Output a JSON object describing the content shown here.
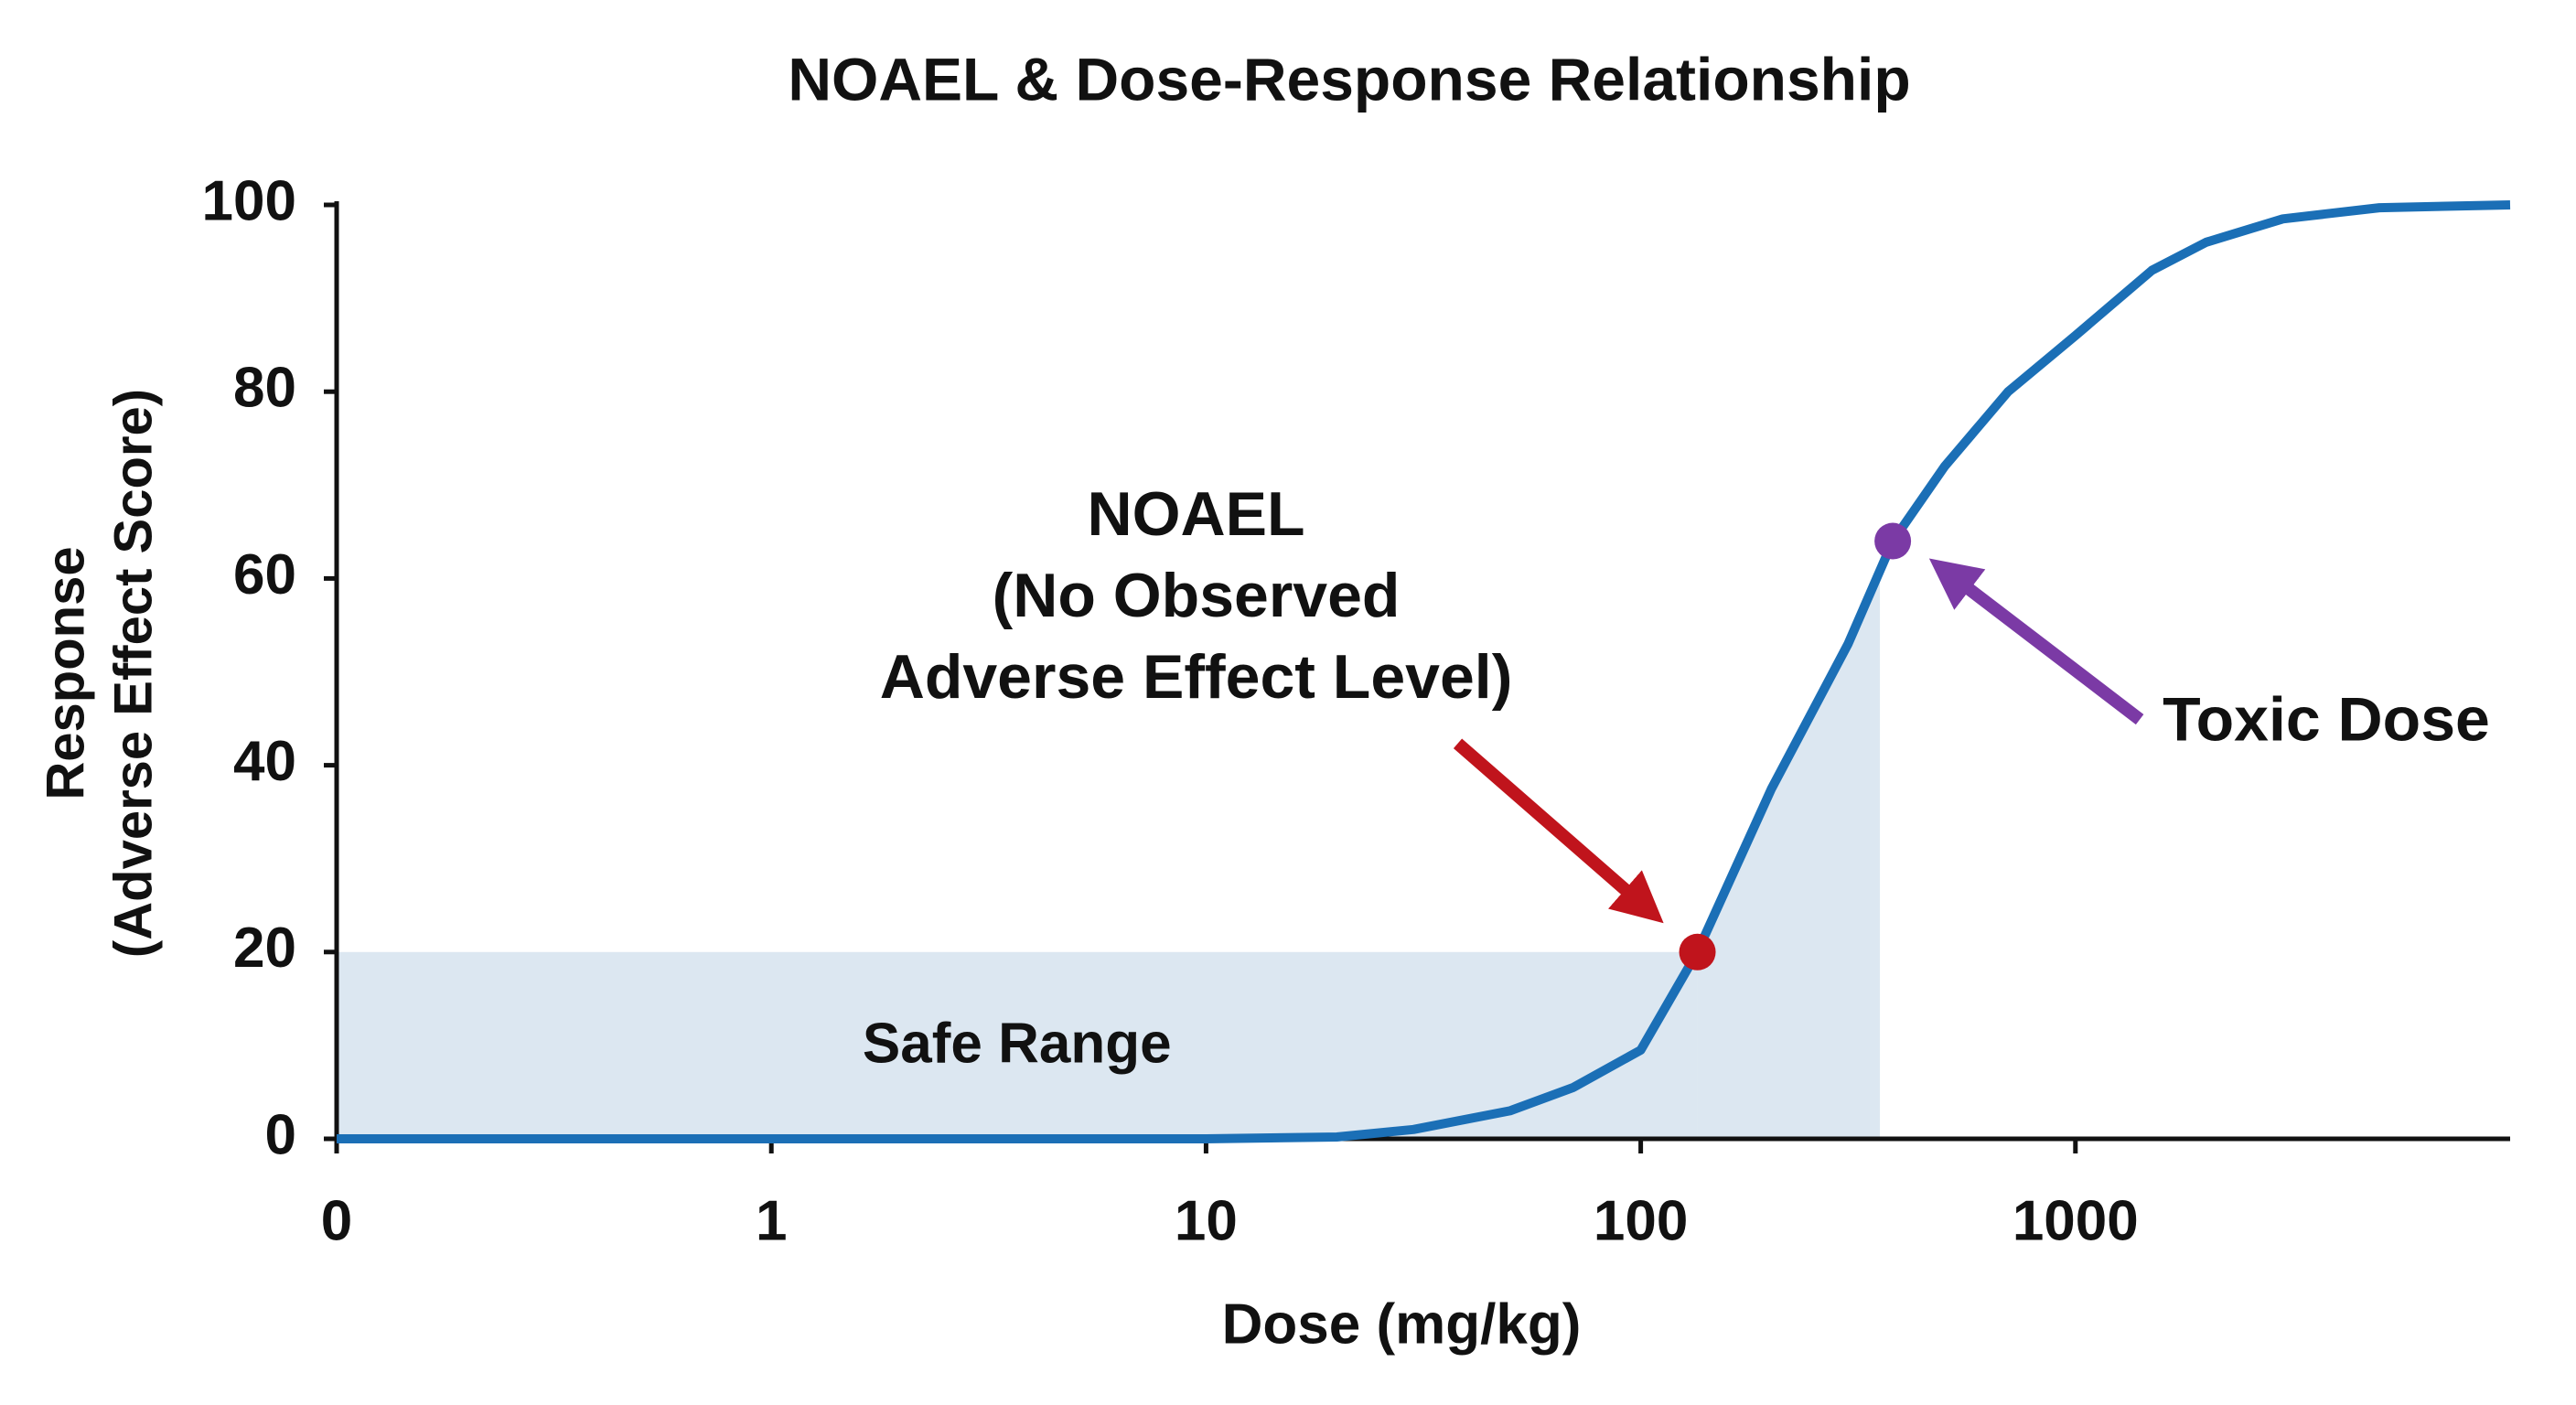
{
  "chart_data": {
    "type": "line",
    "title": "NOAEL & Dose-Response Relationship",
    "x_label": "Dose (mg/kg)",
    "y_label": [
      "Response",
      "(Adverse Effect Score)"
    ],
    "x_scale": "log",
    "xlim": [
      0.1,
      10000
    ],
    "xticks": [
      {
        "value": 0.1,
        "label": "0"
      },
      1,
      10,
      100,
      1000
    ],
    "ylim": [
      0,
      100
    ],
    "yticks": [
      0,
      20,
      40,
      60,
      80,
      100
    ],
    "color": "#1b6fb6",
    "x": [
      0.1,
      1,
      10,
      20,
      30,
      50,
      70,
      100,
      135,
      200,
      300,
      380,
      500,
      700,
      1000,
      1500,
      2000,
      3000,
      5000,
      10000
    ],
    "values": [
      0,
      0,
      0,
      0.2,
      1,
      3,
      5.5,
      9.5,
      20,
      37.5,
      53,
      64,
      72,
      80,
      86,
      93,
      96,
      98.5,
      99.7,
      100
    ],
    "safe_range": {
      "label": "Safe Range",
      "xlim": [
        0.1,
        135
      ],
      "ylim": [
        0,
        20
      ],
      "color": "#dce7f1"
    },
    "shade_to_x": 355,
    "annotations": [
      {
        "text": [
          "NOAEL",
          "(No Observed",
          "Adverse Effect Level)"
        ],
        "x": 135,
        "y": 20,
        "color": "#c0141c"
      },
      {
        "text": [
          "Toxic Dose"
        ],
        "x": 380,
        "y": 64,
        "color": "#7b3aa5"
      }
    ]
  }
}
